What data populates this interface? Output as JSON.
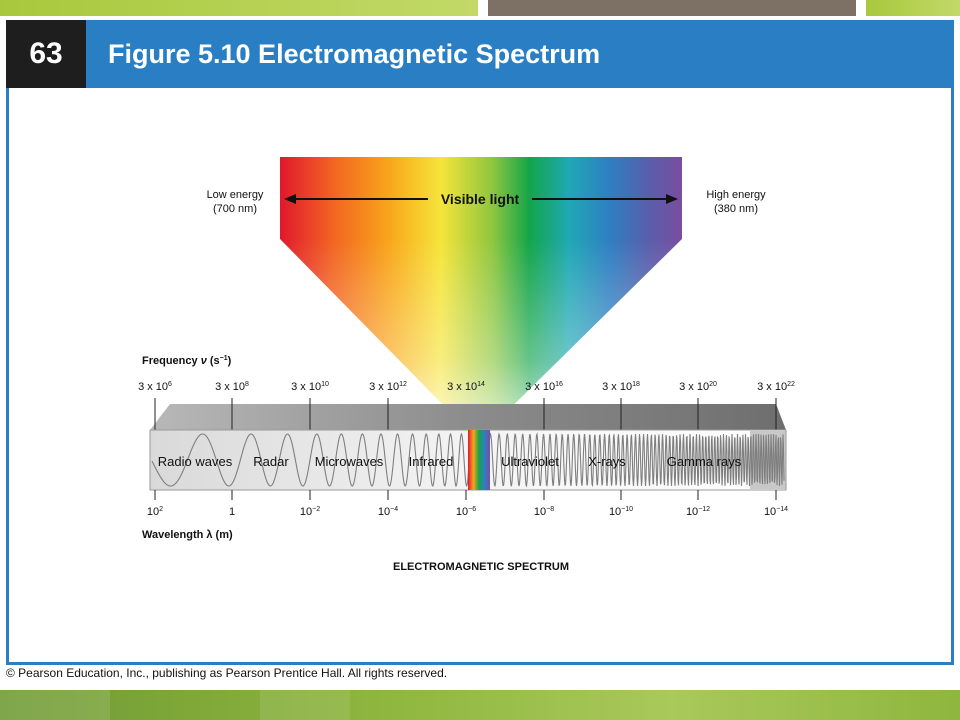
{
  "slide": {
    "number": "63",
    "title": "Figure 5.10 Electromagnetic Spectrum",
    "copyright": "© Pearson Education, Inc., publishing as Pearson Prentice Hall. All rights reserved."
  },
  "colors": {
    "header_blue": "#2a7fc4",
    "number_box": "#1e1e1e",
    "accent_green": "#a8c83c",
    "accent_gray": "#7d7064"
  },
  "figure": {
    "visible": {
      "label": "Visible light",
      "low_label": "Low energy",
      "low_value": "(700 nm)",
      "high_label": "High energy",
      "high_value": "(380 nm)"
    },
    "frequency_axis": {
      "label_main": "Frequency ",
      "label_symbol": "ν",
      "label_unit": " (s",
      "label_exp": "−1",
      "label_close": ")",
      "ticks": [
        {
          "base": "3 x 10",
          "exp": "6"
        },
        {
          "base": "3 x 10",
          "exp": "8"
        },
        {
          "base": "3 x 10",
          "exp": "10"
        },
        {
          "base": "3 x 10",
          "exp": "12"
        },
        {
          "base": "3 x 10",
          "exp": "14"
        },
        {
          "base": "3 x 10",
          "exp": "16"
        },
        {
          "base": "3 x 10",
          "exp": "18"
        },
        {
          "base": "3 x 10",
          "exp": "20"
        },
        {
          "base": "3 x 10",
          "exp": "22"
        }
      ]
    },
    "wavelength_axis": {
      "label": "Wavelength λ (m)",
      "ticks": [
        {
          "base": "10",
          "exp": "2"
        },
        {
          "base": "1",
          "exp": ""
        },
        {
          "base": "10",
          "exp": "−2"
        },
        {
          "base": "10",
          "exp": "−4"
        },
        {
          "base": "10",
          "exp": "−6"
        },
        {
          "base": "10",
          "exp": "−8"
        },
        {
          "base": "10",
          "exp": "−10"
        },
        {
          "base": "10",
          "exp": "−12"
        },
        {
          "base": "10",
          "exp": "−14"
        }
      ]
    },
    "regions": [
      "Radio waves",
      "Radar",
      "Microwaves",
      "Infrared",
      "Ultraviolet",
      "X-rays",
      "Gamma rays"
    ],
    "caption": "ELECTROMAGNETIC SPECTRUM"
  }
}
